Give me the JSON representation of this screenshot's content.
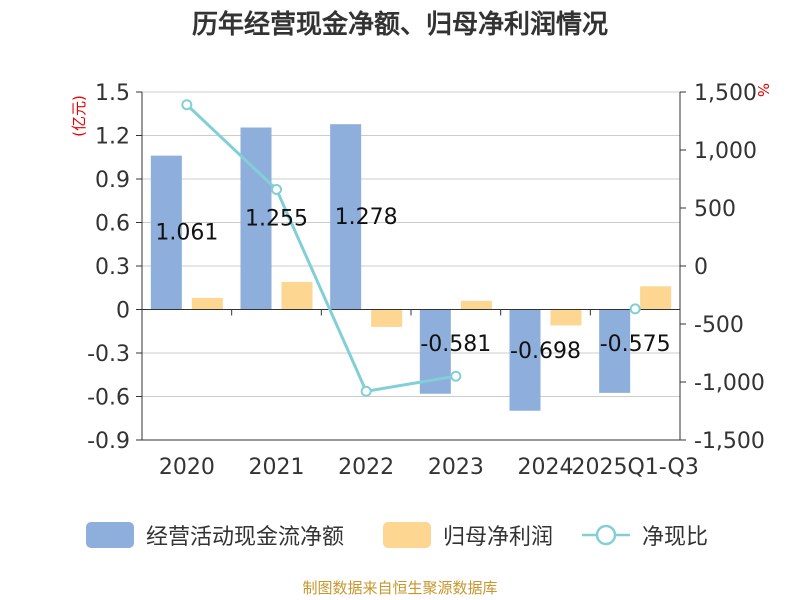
{
  "chart_data": {
    "type": "bar",
    "title": "历年经营现金净额、归母净利润情况",
    "categories": [
      "2020",
      "2021",
      "2022",
      "2023",
      "2024",
      "2025Q1-Q3"
    ],
    "series": [
      {
        "name": "经营活动现金流净额",
        "axis": "left",
        "color": "#8eaedb",
        "values": [
          1.061,
          1.255,
          1.278,
          -0.581,
          -0.698,
          -0.575
        ],
        "labels": [
          "1.061",
          "1.255",
          "1.278",
          "-0.581",
          "-0.698",
          "-0.575"
        ]
      },
      {
        "name": "归母净利润",
        "axis": "left",
        "color": "#fdd692",
        "values": [
          0.08,
          0.19,
          -0.12,
          0.06,
          -0.11,
          0.16
        ]
      },
      {
        "name": "净现比",
        "axis": "right",
        "type": "line",
        "color": "#82cfd6",
        "values": [
          1390,
          660,
          -1080,
          -950,
          null,
          -370
        ]
      }
    ],
    "y_left": {
      "unit": "(亿元)",
      "ylim": [
        -0.9,
        1.5
      ],
      "ticks": [
        "1.5",
        "1.2",
        "0.9",
        "0.6",
        "0.3",
        "0",
        "-0.3",
        "-0.6",
        "-0.9"
      ]
    },
    "y_right": {
      "unit": "%",
      "ylim": [
        -1500,
        1500
      ],
      "ticks": [
        "1,500",
        "1,000",
        "500",
        "0",
        "-500",
        "-1,000",
        "-1,500"
      ]
    },
    "grid": true,
    "legend": "bottom"
  },
  "source": "制图数据来自恒生聚源数据库"
}
